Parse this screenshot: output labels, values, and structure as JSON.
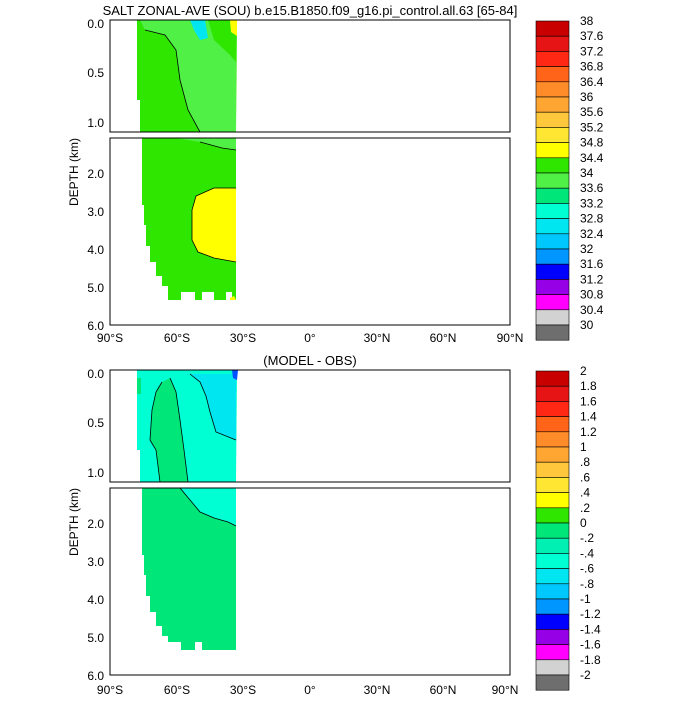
{
  "chart_data": [
    {
      "type": "contour",
      "title": "SALT ZONAL-AVE (SOU) b.e15.B1850.f09_g16.pi_control.all.63 [65-84]",
      "ylabel": "DEPTH (km)",
      "xticks": [
        "90°S",
        "60°S",
        "30°S",
        "0°",
        "30°N",
        "60°N",
        "90°N"
      ],
      "yticks_upper": [
        "0.0",
        "0.5",
        "1.0"
      ],
      "yticks_lower": [
        "2.0",
        "3.0",
        "4.0",
        "5.0",
        "6.0"
      ],
      "xlim": [
        -90,
        90
      ],
      "ylim": [
        0,
        6
      ],
      "colorbar_labels": [
        "38",
        "37.6",
        "37.2",
        "36.8",
        "36.4",
        "36",
        "35.6",
        "35.2",
        "34.8",
        "34.4",
        "34",
        "33.6",
        "33.2",
        "32.8",
        "32.4",
        "32",
        "31.6",
        "31.2",
        "30.8",
        "30.4",
        "30"
      ],
      "colorbar_colors": [
        "#c80000",
        "#e61414",
        "#ff2814",
        "#ff6419",
        "#ff8c28",
        "#ffa532",
        "#ffc83c",
        "#ffe632",
        "#ffff00",
        "#2ee600",
        "#50f046",
        "#00e678",
        "#00ffd2",
        "#00e6f0",
        "#00c8ff",
        "#0096ff",
        "#0000ff",
        "#9600e6",
        "#ff00ff",
        "#d2d2d2",
        "#6e6e6e"
      ],
      "field_colors": {
        "base": "#2ee600",
        "mid": "#50f046",
        "yellow": "#ffff00",
        "cyan": "#00e6f0"
      }
    },
    {
      "type": "contour",
      "title": "(MODEL - OBS)",
      "ylabel": "DEPTH (km)",
      "xticks": [
        "90°S",
        "60°S",
        "30°S",
        "0°",
        "30°N",
        "60°N",
        "90°N"
      ],
      "yticks_upper": [
        "0.0",
        "0.5",
        "1.0"
      ],
      "yticks_lower": [
        "2.0",
        "3.0",
        "4.0",
        "5.0",
        "6.0"
      ],
      "xlim": [
        -90,
        90
      ],
      "ylim": [
        0,
        6
      ],
      "colorbar_labels": [
        "2",
        "1.8",
        "1.6",
        "1.4",
        "1.2",
        "1",
        ".8",
        ".6",
        ".4",
        ".2",
        "0",
        "-.2",
        "-.4",
        "-.6",
        "-.8",
        "-1",
        "-1.2",
        "-1.4",
        "-1.6",
        "-1.8",
        "-2"
      ],
      "colorbar_colors": [
        "#c80000",
        "#e61414",
        "#ff2814",
        "#ff6419",
        "#ff8c28",
        "#ffa532",
        "#ffc83c",
        "#ffe632",
        "#ffff00",
        "#2ee600",
        "#00e678",
        "#00f0b4",
        "#00ffd2",
        "#00e6f0",
        "#00c8ff",
        "#0096ff",
        "#0000ff",
        "#9600e6",
        "#ff00ff",
        "#d2d2d2",
        "#6e6e6e"
      ],
      "field_colors": {
        "base": "#00e678",
        "cyan": "#00ffd2",
        "light": "#00f0b4"
      }
    }
  ]
}
